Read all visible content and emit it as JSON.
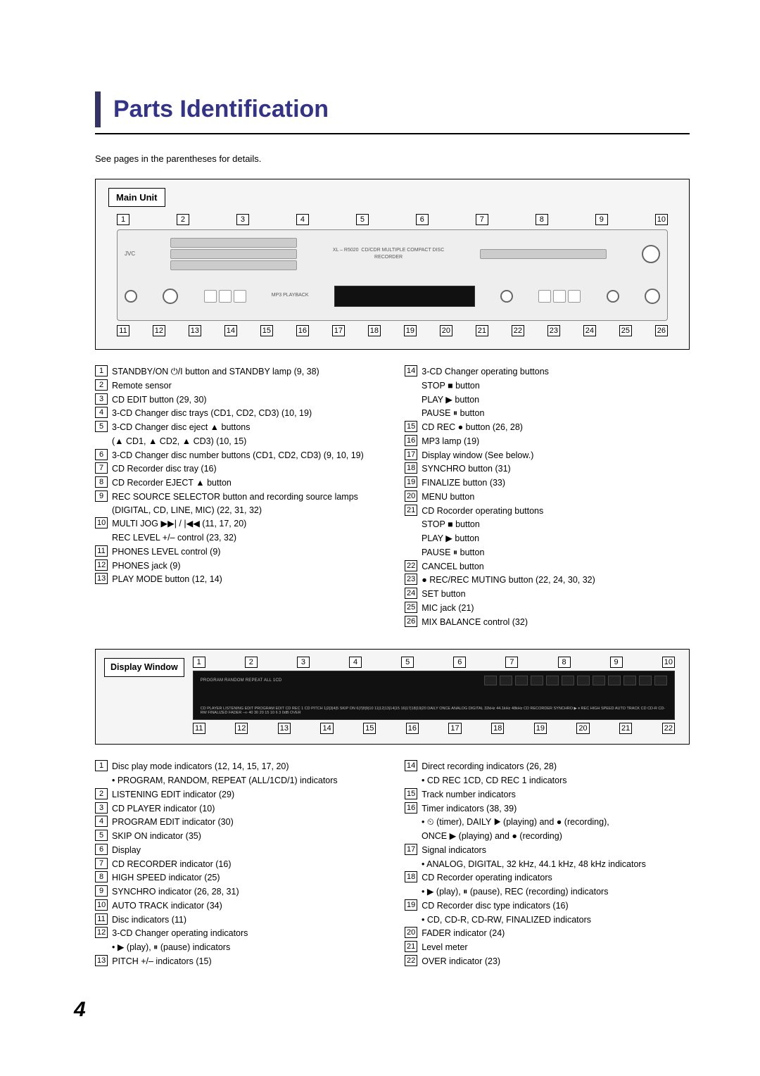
{
  "title": "Parts Identification",
  "intro": "See pages in the parentheses for details.",
  "main_unit_label": "Main Unit",
  "main_unit_top_callouts": [
    "1",
    "2",
    "3",
    "4",
    "5",
    "6",
    "7",
    "8",
    "9",
    "10"
  ],
  "main_unit_bottom_callouts": [
    "11",
    "12",
    "13",
    "14",
    "15",
    "16",
    "17",
    "18",
    "19",
    "20",
    "21",
    "22",
    "23",
    "24",
    "25",
    "26"
  ],
  "main_left": [
    {
      "n": "1",
      "t": "STANDBY/ON  ⏻/I  button and STANDBY lamp (9, 38)"
    },
    {
      "n": "2",
      "t": "Remote sensor"
    },
    {
      "n": "3",
      "t": "CD EDIT button (29, 30)"
    },
    {
      "n": "4",
      "t": "3-CD Changer disc trays (CD1, CD2, CD3) (10, 19)"
    },
    {
      "n": "5",
      "t": "3-CD Changer disc eject ▲ buttons"
    },
    {
      "n": "",
      "t": "(▲ CD1, ▲ CD2, ▲ CD3) (10, 15)",
      "indent": true
    },
    {
      "n": "6",
      "t": "3-CD Changer disc number buttons (CD1, CD2, CD3) (9, 10, 19)"
    },
    {
      "n": "7",
      "t": "CD Recorder disc tray (16)"
    },
    {
      "n": "8",
      "t": "CD Recorder EJECT ▲ button"
    },
    {
      "n": "9",
      "t": "REC SOURCE SELECTOR button and recording source lamps (DIGITAL, CD, LINE, MIC) (22, 31, 32)"
    },
    {
      "n": "10",
      "t": "MULTI JOG ▶▶| / |◀◀ (11, 17, 20)"
    },
    {
      "n": "",
      "t": "REC LEVEL +/– control (23, 32)",
      "indent": true
    },
    {
      "n": "11",
      "t": "PHONES LEVEL control (9)"
    },
    {
      "n": "12",
      "t": "PHONES jack (9)"
    },
    {
      "n": "13",
      "t": "PLAY MODE button (12, 14)"
    }
  ],
  "main_right": [
    {
      "n": "14",
      "t": "3-CD Changer operating buttons"
    },
    {
      "n": "",
      "t": "STOP ■ button",
      "indent": true
    },
    {
      "n": "",
      "t": "PLAY ▶ button",
      "indent": true
    },
    {
      "n": "",
      "t": "PAUSE ⏸ button",
      "indent": true
    },
    {
      "n": "15",
      "t": "CD REC ● button (26, 28)"
    },
    {
      "n": "16",
      "t": "MP3 lamp (19)"
    },
    {
      "n": "17",
      "t": "Display window (See below.)"
    },
    {
      "n": "18",
      "t": "SYNCHRO button (31)"
    },
    {
      "n": "19",
      "t": "FINALIZE button (33)"
    },
    {
      "n": "20",
      "t": "MENU button"
    },
    {
      "n": "21",
      "t": "CD Rocorder operating buttons"
    },
    {
      "n": "",
      "t": "STOP ■ button",
      "indent": true
    },
    {
      "n": "",
      "t": "PLAY ▶ button",
      "indent": true
    },
    {
      "n": "",
      "t": "PAUSE ⏸ button",
      "indent": true
    },
    {
      "n": "22",
      "t": "CANCEL button"
    },
    {
      "n": "23",
      "t": "● REC/REC MUTING button (22, 24, 30, 32)"
    },
    {
      "n": "24",
      "t": "SET button"
    },
    {
      "n": "25",
      "t": "MIC jack (21)"
    },
    {
      "n": "26",
      "t": "MIX BALANCE control (32)"
    }
  ],
  "display_label": "Display Window",
  "display_top_callouts": [
    "1",
    "2",
    "3",
    "4",
    "5",
    "6",
    "7",
    "8",
    "9",
    "10"
  ],
  "display_bottom_callouts": [
    "11",
    "12",
    "13",
    "14",
    "15",
    "16",
    "17",
    "18",
    "19",
    "20",
    "21",
    "22"
  ],
  "display_indicators_text_top": "PROGRAM RANDOM REPEAT ALL 1CD",
  "display_indicators_text_mid": "CD PLAYER  LISTENING EDIT  PROGRAM EDIT  CD REC 1 CD  PITCH  1|2|3|4|5 SKIP ON  6|7|8|9|10  11|12|13|14|15  16|17|18|19|20  DAILY ONCE  ANALOG DIGITAL 32kHz 44.1kHz 48kHz  CD RECORDER SYNCHRO  ▶ ⏸ REC HIGH SPEED AUTO TRACK  CD CD-R CD-RW FINALIZED  FADER  –∞ 40 30 20 15 10 6 3 0dB  OVER",
  "display_left": [
    {
      "n": "1",
      "t": "Disc play mode indicators (12, 14, 15, 17, 20)"
    },
    {
      "n": "",
      "t": "• PROGRAM, RANDOM, REPEAT (ALL/1CD/1) indicators",
      "indent": true
    },
    {
      "n": "2",
      "t": "LISTENING EDIT indicator (29)"
    },
    {
      "n": "3",
      "t": "CD PLAYER indicator (10)"
    },
    {
      "n": "4",
      "t": "PROGRAM EDIT indicator (30)"
    },
    {
      "n": "5",
      "t": "SKIP ON indicator (35)"
    },
    {
      "n": "6",
      "t": "Display"
    },
    {
      "n": "7",
      "t": "CD RECORDER indicator (16)"
    },
    {
      "n": "8",
      "t": "HIGH SPEED indicator (25)"
    },
    {
      "n": "9",
      "t": "SYNCHRO indicator (26, 28, 31)"
    },
    {
      "n": "10",
      "t": "AUTO TRACK indicator (34)"
    },
    {
      "n": "11",
      "t": "Disc indicators (11)"
    },
    {
      "n": "12",
      "t": "3-CD Changer operating indicators"
    },
    {
      "n": "",
      "t": "• ▶ (play), ⏸ (pause) indicators",
      "indent": true
    },
    {
      "n": "13",
      "t": "PITCH +/– indicators (15)"
    }
  ],
  "display_right": [
    {
      "n": "14",
      "t": "Direct recording indicators (26, 28)"
    },
    {
      "n": "",
      "t": "• CD REC 1CD, CD REC 1 indicators",
      "indent": true
    },
    {
      "n": "15",
      "t": "Track number indicators"
    },
    {
      "n": "16",
      "t": "Timer indicators (38, 39)"
    },
    {
      "n": "",
      "t": "• ⏲ (timer), DAILY ▶ (playing) and ● (recording),",
      "indent": true
    },
    {
      "n": "",
      "t": "  ONCE ▶ (playing) and ● (recording)",
      "indent": true
    },
    {
      "n": "17",
      "t": "Signal indicators"
    },
    {
      "n": "",
      "t": "• ANALOG, DIGITAL, 32 kHz, 44.1 kHz, 48 kHz indicators",
      "indent": true
    },
    {
      "n": "18",
      "t": "CD Recorder operating indicators"
    },
    {
      "n": "",
      "t": "• ▶ (play), ⏸ (pause), REC (recording) indicators",
      "indent": true
    },
    {
      "n": "19",
      "t": "CD Recorder disc type indicators (16)"
    },
    {
      "n": "",
      "t": "• CD, CD-R, CD-RW, FINALIZED indicators",
      "indent": true
    },
    {
      "n": "20",
      "t": "FADER indicator (24)"
    },
    {
      "n": "21",
      "t": "Level meter"
    },
    {
      "n": "22",
      "t": "OVER indicator (23)"
    }
  ],
  "page_number": "4"
}
